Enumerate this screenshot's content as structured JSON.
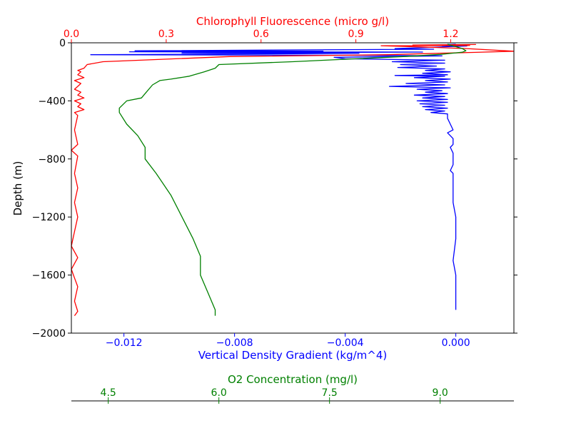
{
  "chart_data": {
    "type": "line",
    "title": "",
    "ylabel": "Depth (m)",
    "ylim": [
      -2000,
      0
    ],
    "yticks": [
      0,
      -400,
      -800,
      -1200,
      -1600,
      -2000
    ],
    "ytick_labels": [
      "0",
      "−400",
      "−800",
      "−1200",
      "−1600",
      "−2000"
    ],
    "colors": {
      "density": "#0000ff",
      "chlorophyll": "#ff0000",
      "oxygen": "#008000",
      "axis": "#000000"
    },
    "axes": {
      "density": {
        "label": "Vertical Density Gradient (kg/m^4)",
        "xlim": [
          -0.0139,
          0.0021
        ],
        "ticks": [
          -0.012,
          -0.008,
          -0.004,
          0.0
        ],
        "tick_labels": [
          "−0.012",
          "−0.008",
          "−0.004",
          "0.000"
        ]
      },
      "chlorophyll": {
        "label": "Chlorophyll Fluorescence (micro g/l)",
        "xlim": [
          0.0,
          1.4
        ],
        "ticks": [
          0.0,
          0.3,
          0.6,
          0.9,
          1.2
        ],
        "tick_labels": [
          "0.0",
          "0.3",
          "0.6",
          "0.9",
          "1.2"
        ]
      },
      "oxygen": {
        "label": "O2 Concentration (mg/l)",
        "xlim": [
          4.0,
          10.0
        ],
        "ticks": [
          4.5,
          6.0,
          7.5,
          9.0
        ],
        "tick_labels": [
          "4.5",
          "6.0",
          "7.5",
          "9.0"
        ]
      }
    },
    "series": [
      {
        "key": "density",
        "points": [
          [
            0.0,
            -10
          ],
          [
            -0.0003,
            -12
          ],
          [
            0.0,
            -14
          ],
          [
            -0.0005,
            -20
          ],
          [
            0.0004,
            -22
          ],
          [
            -0.0022,
            -40
          ],
          [
            -0.0008,
            -44
          ],
          [
            -0.0116,
            -55
          ],
          [
            -0.0048,
            -58
          ],
          [
            -0.0118,
            -62
          ],
          [
            -0.0012,
            -64
          ],
          [
            -0.0099,
            -70
          ],
          [
            -0.0035,
            -73
          ],
          [
            -0.0132,
            -82
          ],
          [
            -0.0037,
            -86
          ],
          [
            -0.0005,
            -90
          ],
          [
            -0.0044,
            -100
          ],
          [
            -0.004,
            -110
          ],
          [
            -0.0004,
            -120
          ],
          [
            -0.0023,
            -130
          ],
          [
            -0.0004,
            -140
          ],
          [
            -0.002,
            -150
          ],
          [
            -0.0007,
            -160
          ],
          [
            -0.0021,
            -170
          ],
          [
            -0.0004,
            -180
          ],
          [
            -0.0011,
            -190
          ],
          [
            -0.0002,
            -200
          ],
          [
            -0.0012,
            -210
          ],
          [
            -0.0003,
            -220
          ],
          [
            -0.0022,
            -225
          ],
          [
            -0.0004,
            -230
          ],
          [
            -0.0015,
            -240
          ],
          [
            -0.0002,
            -250
          ],
          [
            -0.0011,
            -260
          ],
          [
            -0.0003,
            -270
          ],
          [
            -0.0018,
            -280
          ],
          [
            -0.0004,
            -290
          ],
          [
            -0.0024,
            -300
          ],
          [
            -0.0002,
            -310
          ],
          [
            -0.0014,
            -320
          ],
          [
            -0.0005,
            -330
          ],
          [
            -0.0011,
            -340
          ],
          [
            -0.0003,
            -350
          ],
          [
            -0.0015,
            -360
          ],
          [
            -0.0004,
            -370
          ],
          [
            -0.0012,
            -380
          ],
          [
            -0.0003,
            -390
          ],
          [
            -0.0014,
            -400
          ],
          [
            -0.0003,
            -410
          ],
          [
            -0.0013,
            -420
          ],
          [
            -0.0004,
            -430
          ],
          [
            -0.0012,
            -440
          ],
          [
            -0.0003,
            -450
          ],
          [
            -0.0011,
            -460
          ],
          [
            -0.0004,
            -470
          ],
          [
            -0.0009,
            -480
          ],
          [
            -0.0003,
            -490
          ],
          [
            -0.0003,
            -520
          ],
          [
            -0.0002,
            -560
          ],
          [
            -0.0001,
            -600
          ],
          [
            -0.0003,
            -620
          ],
          [
            -0.0002,
            -640
          ],
          [
            -0.0001,
            -660
          ],
          [
            -0.0001,
            -700
          ],
          [
            -0.0002,
            -720
          ],
          [
            -0.0001,
            -760
          ],
          [
            -0.0001,
            -840
          ],
          [
            -0.0002,
            -880
          ],
          [
            -0.0001,
            -900
          ],
          [
            -0.0001,
            -1000
          ],
          [
            -0.0001,
            -1100
          ],
          [
            0.0,
            -1200
          ],
          [
            0.0,
            -1350
          ],
          [
            -0.0001,
            -1500
          ],
          [
            0.0,
            -1600
          ],
          [
            0.0,
            -1700
          ],
          [
            0.0,
            -1800
          ],
          [
            0.0,
            -1840
          ]
        ]
      },
      {
        "key": "chlorophyll",
        "points": [
          [
            1.28,
            -12
          ],
          [
            1.08,
            -15
          ],
          [
            1.26,
            -18
          ],
          [
            0.98,
            -20
          ],
          [
            1.1,
            -28
          ],
          [
            1.25,
            -40
          ],
          [
            1.4,
            -58
          ],
          [
            1.28,
            -66
          ],
          [
            1.16,
            -72
          ],
          [
            1.0,
            -82
          ],
          [
            0.5,
            -95
          ],
          [
            0.1,
            -130
          ],
          [
            0.05,
            -150
          ],
          [
            0.04,
            -175
          ],
          [
            0.02,
            -190
          ],
          [
            0.03,
            -200
          ],
          [
            0.02,
            -220
          ],
          [
            0.04,
            -240
          ],
          [
            0.01,
            -260
          ],
          [
            0.03,
            -280
          ],
          [
            0.02,
            -300
          ],
          [
            0.01,
            -320
          ],
          [
            0.03,
            -340
          ],
          [
            0.02,
            -360
          ],
          [
            0.04,
            -380
          ],
          [
            0.01,
            -400
          ],
          [
            0.03,
            -420
          ],
          [
            0.02,
            -440
          ],
          [
            0.04,
            -460
          ],
          [
            0.01,
            -480
          ],
          [
            0.02,
            -500
          ],
          [
            0.01,
            -600
          ],
          [
            0.02,
            -700
          ],
          [
            0.0,
            -740
          ],
          [
            0.02,
            -780
          ],
          [
            0.01,
            -900
          ],
          [
            0.02,
            -1000
          ],
          [
            0.01,
            -1100
          ],
          [
            0.02,
            -1200
          ],
          [
            0.01,
            -1300
          ],
          [
            0.0,
            -1400
          ],
          [
            0.02,
            -1480
          ],
          [
            0.0,
            -1560
          ],
          [
            0.01,
            -1620
          ],
          [
            0.02,
            -1680
          ],
          [
            0.01,
            -1780
          ],
          [
            0.02,
            -1850
          ],
          [
            0.01,
            -1880
          ]
        ]
      },
      {
        "key": "oxygen",
        "points": [
          [
            9.1,
            -10
          ],
          [
            9.3,
            -40
          ],
          [
            9.35,
            -55
          ],
          [
            9.3,
            -65
          ],
          [
            9.0,
            -80
          ],
          [
            8.5,
            -95
          ],
          [
            7.0,
            -130
          ],
          [
            6.0,
            -150
          ],
          [
            5.95,
            -175
          ],
          [
            5.8,
            -200
          ],
          [
            5.6,
            -230
          ],
          [
            5.35,
            -250
          ],
          [
            5.2,
            -260
          ],
          [
            5.1,
            -290
          ],
          [
            5.0,
            -350
          ],
          [
            4.95,
            -380
          ],
          [
            4.75,
            -400
          ],
          [
            4.65,
            -450
          ],
          [
            4.65,
            -480
          ],
          [
            4.75,
            -560
          ],
          [
            4.9,
            -640
          ],
          [
            5.0,
            -720
          ],
          [
            5.0,
            -800
          ],
          [
            5.15,
            -900
          ],
          [
            5.35,
            -1050
          ],
          [
            5.5,
            -1200
          ],
          [
            5.65,
            -1350
          ],
          [
            5.75,
            -1470
          ],
          [
            5.75,
            -1600
          ],
          [
            5.85,
            -1720
          ],
          [
            5.95,
            -1840
          ],
          [
            5.95,
            -1880
          ]
        ]
      }
    ]
  }
}
